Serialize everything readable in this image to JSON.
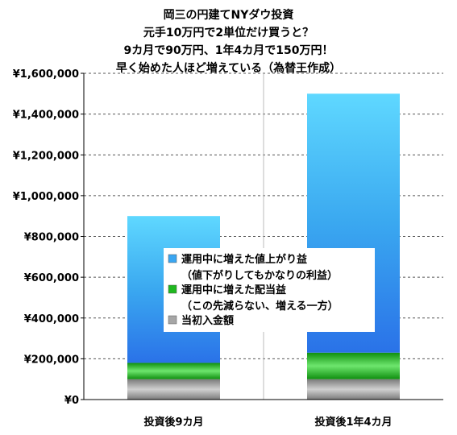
{
  "chart_data": {
    "type": "bar",
    "stacked": true,
    "title_lines": [
      "岡三の円建てNYダウ投資",
      "元手10万円で2単位だけ買うと？",
      "9カ月で90万円、1年4カ月で150万円！",
      "早く始めた人ほど増えている（為替王作成）"
    ],
    "categories": [
      "投資後9カ月",
      "投資後1年4カ月"
    ],
    "series": [
      {
        "name": "当初入金額",
        "values": [
          100000,
          100000
        ],
        "color": "#a6a6a6"
      },
      {
        "name": "運用中に増えた配当益\n（この先減らない、増える一方）",
        "values": [
          80000,
          130000
        ],
        "color": "#1fb81f"
      },
      {
        "name": "運用中に増えた値上がり益\n（値下がりしてもかなりの利益）",
        "values": [
          720000,
          1270000
        ],
        "color": "#3aa6f2"
      }
    ],
    "ylim": [
      0,
      1600000
    ],
    "ytick_step": 200000,
    "ytick_labels": [
      "¥0",
      "¥200,000",
      "¥400,000",
      "¥600,000",
      "¥800,000",
      "¥1,000,000",
      "¥1,200,000",
      "¥1,400,000",
      "¥1,600,000"
    ],
    "grid": true,
    "legend_position": "center",
    "xlabel": "",
    "ylabel": ""
  }
}
